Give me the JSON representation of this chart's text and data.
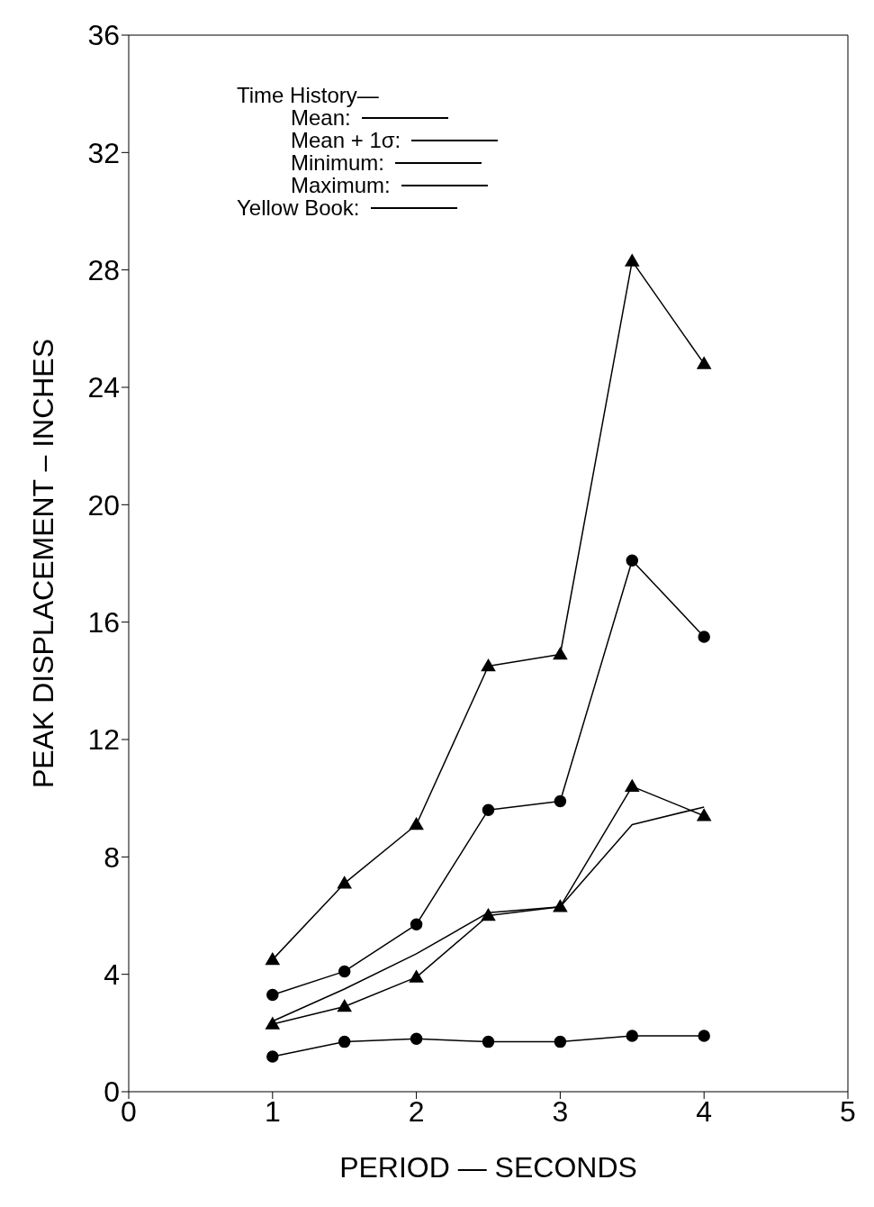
{
  "chart_data": {
    "type": "line",
    "xlabel": "PERIOD  —  SECONDS",
    "ylabel": "PEAK DISPLACEMENT  –  INCHES",
    "legend_title": "Time History—",
    "x": [
      1,
      1.5,
      2,
      2.5,
      3,
      3.5,
      4
    ],
    "series": [
      {
        "name": "Mean:",
        "color": "#000000",
        "marker": "triangle",
        "values": [
          2.3,
          2.9,
          3.9,
          6.0,
          6.3,
          10.4,
          9.4
        ]
      },
      {
        "name": "Mean + 1σ:",
        "color": "#000000",
        "marker": "circle",
        "values": [
          3.3,
          4.1,
          5.7,
          9.6,
          9.9,
          18.1,
          15.5
        ]
      },
      {
        "name": "Minimum:",
        "color": "#000000",
        "marker": "circle",
        "values": [
          1.2,
          1.7,
          1.8,
          1.7,
          1.7,
          1.9,
          1.9
        ]
      },
      {
        "name": "Maximum:",
        "color": "#000000",
        "marker": "triangle",
        "values": [
          4.5,
          7.1,
          9.1,
          14.5,
          14.9,
          28.3,
          24.8
        ]
      },
      {
        "name": "Yellow Book:",
        "color": "#000000",
        "marker": "none",
        "values": [
          2.4,
          3.5,
          4.7,
          6.1,
          6.3,
          9.1,
          9.7
        ]
      }
    ],
    "xlim": [
      0,
      5
    ],
    "xticks": [
      0,
      1,
      2,
      3,
      4,
      5
    ],
    "ylim": [
      0,
      36
    ],
    "yticks": [
      0,
      4,
      8,
      12,
      16,
      20,
      24,
      28,
      32,
      36
    ],
    "grid": false,
    "legend": "top left",
    "line_style": "solid"
  }
}
